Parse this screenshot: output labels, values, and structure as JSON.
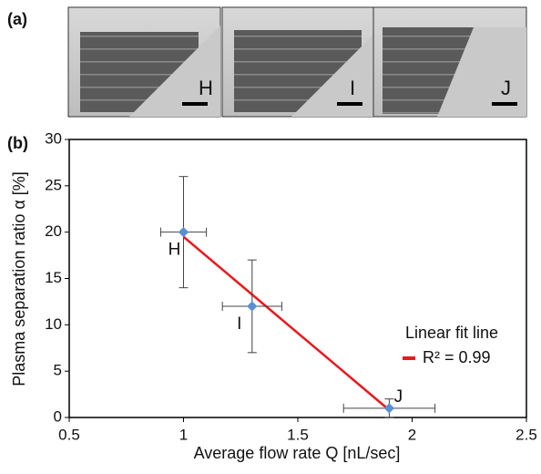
{
  "panel_a": {
    "label": "(a)",
    "images": [
      "H",
      "I",
      "J"
    ]
  },
  "chart_data": {
    "type": "scatter",
    "panel_label": "(b)",
    "x_label": "Average flow rate Q [nL/sec]",
    "y_label": "Plasma separation ratio α [%]",
    "x": [
      1,
      1.3,
      1.9
    ],
    "values": [
      20,
      12,
      1
    ],
    "errors": [
      6,
      5,
      1
    ],
    "x_errors": [
      0.1,
      0.13,
      0.2
    ],
    "point_labels": [
      "H",
      "I",
      "J"
    ],
    "color": "#5b8fd4",
    "fit": {
      "name": "R² = 0.99",
      "color": "#e8191e",
      "x": [
        1,
        1.9
      ],
      "values": [
        19.5,
        0.8
      ]
    },
    "legend_title": "Linear fit line",
    "xlim": [
      0.5,
      2.5
    ],
    "xticks": [
      0.5,
      1,
      1.5,
      2,
      2.5
    ],
    "ylim": [
      0,
      30
    ],
    "yticks": [
      0,
      5,
      10,
      15,
      20,
      25,
      30
    ]
  }
}
